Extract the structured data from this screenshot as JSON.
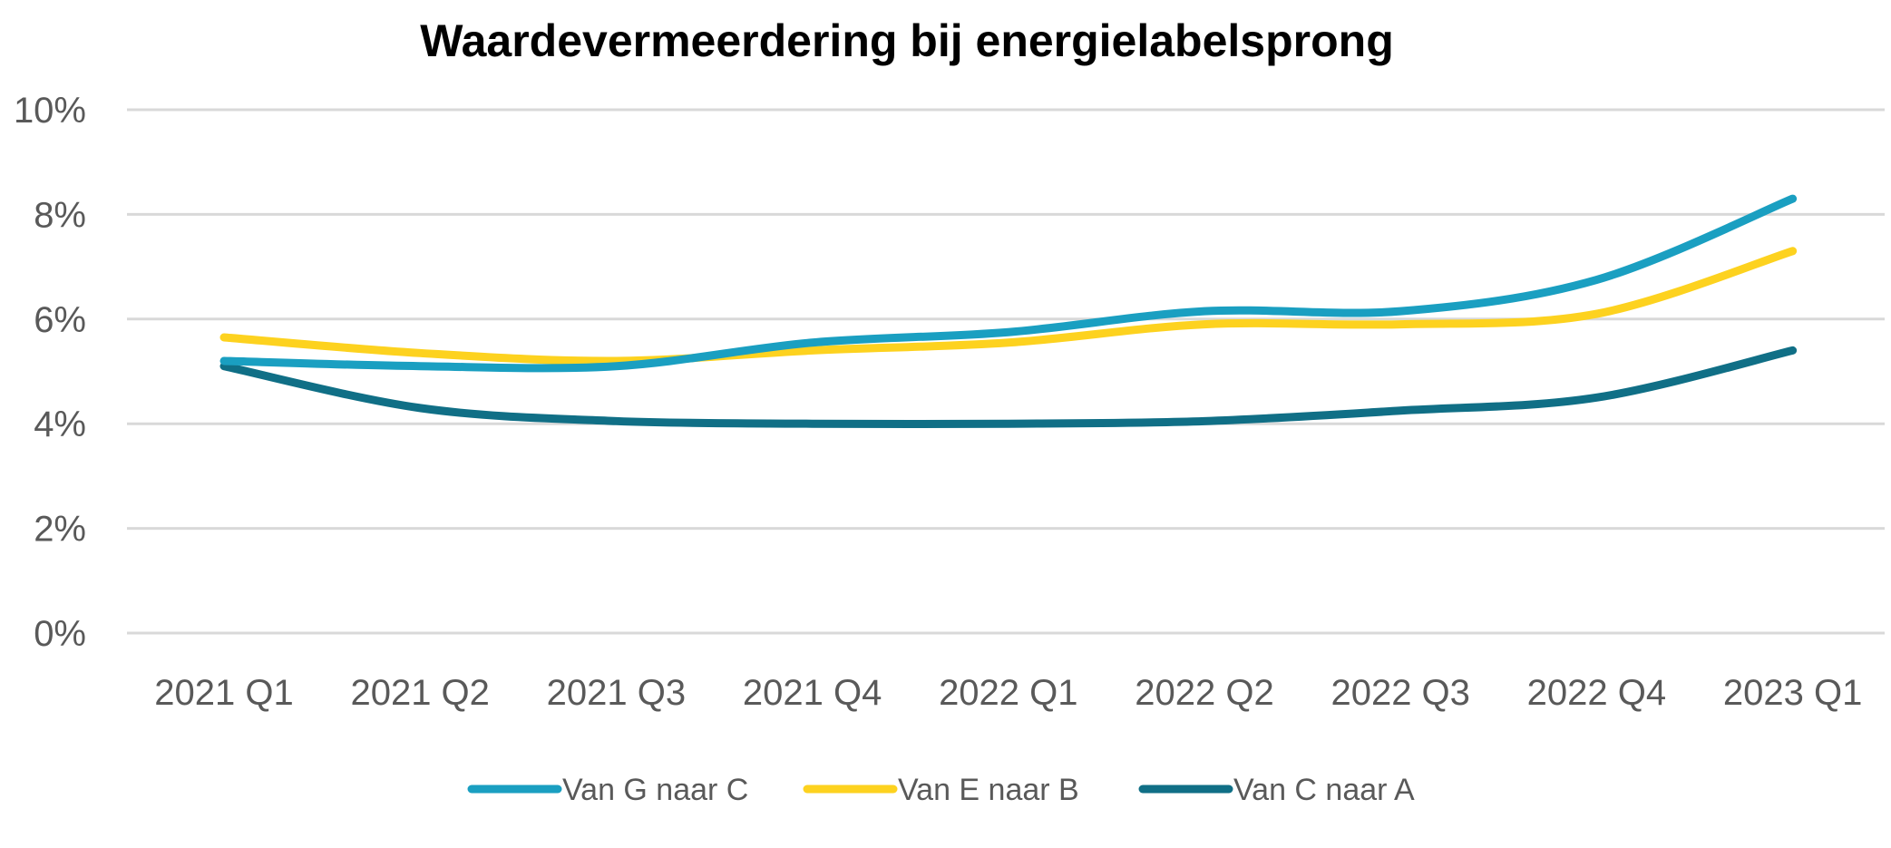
{
  "chart_data": {
    "type": "line",
    "title": "Waardevermeerdering bij energielabelsprong",
    "xlabel": "",
    "ylabel": "",
    "categories": [
      "2021 Q1",
      "2021 Q2",
      "2021 Q3",
      "2021 Q4",
      "2022 Q1",
      "2022 Q2",
      "2022 Q3",
      "2022 Q4",
      "2023 Q1"
    ],
    "y_ticks": [
      "0%",
      "2%",
      "4%",
      "6%",
      "8%",
      "10%"
    ],
    "ylim": [
      0,
      10
    ],
    "y_unit": "%",
    "grid": true,
    "legend_position": "bottom",
    "smooth": true,
    "series": [
      {
        "name": "Van G naar C",
        "color": "#1a9fc1",
        "values": [
          5.2,
          5.1,
          5.1,
          5.55,
          5.75,
          6.15,
          6.15,
          6.75,
          8.3
        ]
      },
      {
        "name": "Van E naar B",
        "color": "#fdd21f",
        "values": [
          5.65,
          5.35,
          5.2,
          5.4,
          5.55,
          5.9,
          5.9,
          6.1,
          7.3
        ]
      },
      {
        "name": "Van C naar A",
        "color": "#106f86",
        "values": [
          5.1,
          4.3,
          4.05,
          4.0,
          4.0,
          4.05,
          4.25,
          4.5,
          5.4
        ]
      }
    ]
  }
}
